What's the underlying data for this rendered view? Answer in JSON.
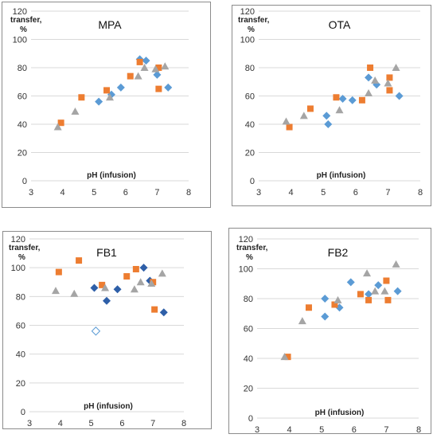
{
  "figure": {
    "panels": [
      "MPA",
      "OTA",
      "FB1",
      "FB2"
    ]
  },
  "chart_data": [
    {
      "type": "scatter",
      "title": "MPA",
      "xlabel": "pH (infusion)",
      "ylabel": "transfer, %",
      "xlim": [
        3,
        8
      ],
      "ylim": [
        0,
        120
      ],
      "x_ticks": [
        3,
        4,
        5,
        6,
        7,
        8
      ],
      "y_ticks": [
        0,
        20,
        40,
        60,
        80,
        100,
        120
      ],
      "grid": "horizontal",
      "series": [
        {
          "marker": "diamond",
          "color": "#5b9bd5",
          "points": [
            [
              5.15,
              56
            ],
            [
              5.55,
              61
            ],
            [
              5.85,
              66
            ],
            [
              6.45,
              86
            ],
            [
              6.65,
              85
            ],
            [
              7.0,
              75
            ],
            [
              7.35,
              66
            ]
          ]
        },
        {
          "marker": "square",
          "color": "#ed7d31",
          "points": [
            [
              3.95,
              41
            ],
            [
              4.6,
              59
            ],
            [
              5.4,
              64
            ],
            [
              6.15,
              74
            ],
            [
              6.45,
              84
            ],
            [
              7.05,
              80
            ],
            [
              7.05,
              65
            ]
          ]
        },
        {
          "marker": "triangle",
          "color": "#a5a5a5",
          "points": [
            [
              3.85,
              38
            ],
            [
              4.4,
              49
            ],
            [
              5.5,
              59
            ],
            [
              6.4,
              74
            ],
            [
              6.6,
              80
            ],
            [
              6.95,
              79
            ],
            [
              7.25,
              81
            ]
          ]
        }
      ]
    },
    {
      "type": "scatter",
      "title": "OTA",
      "xlabel": "pH (infusion)",
      "ylabel": "transfer, %",
      "xlim": [
        3,
        8
      ],
      "ylim": [
        0,
        120
      ],
      "x_ticks": [
        3,
        4,
        5,
        6,
        7,
        8
      ],
      "y_ticks": [
        0,
        20,
        40,
        60,
        80,
        100,
        120
      ],
      "grid": "horizontal",
      "series": [
        {
          "marker": "diamond",
          "color": "#5b9bd5",
          "points": [
            [
              5.1,
              46
            ],
            [
              5.15,
              40
            ],
            [
              5.6,
              58
            ],
            [
              5.9,
              57
            ],
            [
              6.4,
              73
            ],
            [
              6.65,
              68
            ],
            [
              7.35,
              60
            ]
          ]
        },
        {
          "marker": "square",
          "color": "#ed7d31",
          "points": [
            [
              3.95,
              38
            ],
            [
              4.6,
              51
            ],
            [
              5.4,
              59
            ],
            [
              6.2,
              57
            ],
            [
              6.45,
              80
            ],
            [
              7.05,
              73
            ],
            [
              7.05,
              64
            ]
          ]
        },
        {
          "marker": "triangle",
          "color": "#a5a5a5",
          "points": [
            [
              3.85,
              42
            ],
            [
              4.4,
              46
            ],
            [
              5.5,
              50
            ],
            [
              6.4,
              62
            ],
            [
              6.6,
              71
            ],
            [
              7.0,
              69
            ],
            [
              7.25,
              80
            ]
          ]
        }
      ]
    },
    {
      "type": "scatter",
      "title": "FB1",
      "xlabel": "pH (infusion)",
      "ylabel": "transfer, %",
      "xlim": [
        3,
        8
      ],
      "ylim": [
        0,
        120
      ],
      "x_ticks": [
        3,
        4,
        5,
        6,
        7,
        8
      ],
      "y_ticks": [
        0,
        20,
        40,
        60,
        80,
        100,
        120
      ],
      "grid": "horizontal",
      "series": [
        {
          "marker": "diamond",
          "color": "#2e5fa8",
          "points": [
            [
              5.1,
              86
            ],
            [
              5.5,
              77
            ],
            [
              5.85,
              85
            ],
            [
              6.7,
              100
            ],
            [
              6.9,
              91
            ],
            [
              7.35,
              69
            ]
          ]
        },
        {
          "marker": "diamond-open",
          "color": "#5b9bd5",
          "points": [
            [
              5.15,
              56
            ]
          ]
        },
        {
          "marker": "square",
          "color": "#ed7d31",
          "points": [
            [
              3.95,
              97
            ],
            [
              4.6,
              105
            ],
            [
              5.35,
              88
            ],
            [
              6.15,
              94
            ],
            [
              6.45,
              99
            ],
            [
              7.0,
              90
            ],
            [
              7.05,
              71
            ]
          ]
        },
        {
          "marker": "triangle",
          "color": "#a5a5a5",
          "points": [
            [
              3.85,
              84
            ],
            [
              4.45,
              82
            ],
            [
              5.45,
              86
            ],
            [
              6.4,
              85
            ],
            [
              6.6,
              90
            ],
            [
              6.95,
              89
            ],
            [
              7.3,
              96
            ]
          ]
        }
      ]
    },
    {
      "type": "scatter",
      "title": "FB2",
      "xlabel": "pH (infusion)",
      "ylabel": "transfer, %",
      "xlim": [
        3,
        8
      ],
      "ylim": [
        0,
        120
      ],
      "x_ticks": [
        3,
        4,
        5,
        6,
        7,
        8
      ],
      "y_ticks": [
        0,
        20,
        40,
        60,
        80,
        100,
        120
      ],
      "grid": "horizontal",
      "series": [
        {
          "marker": "diamond",
          "color": "#5b9bd5",
          "points": [
            [
              5.1,
              80
            ],
            [
              5.1,
              68
            ],
            [
              5.55,
              74
            ],
            [
              5.9,
              91
            ],
            [
              6.45,
              83
            ],
            [
              6.75,
              89
            ],
            [
              7.35,
              85
            ]
          ]
        },
        {
          "marker": "square",
          "color": "#ed7d31",
          "points": [
            [
              3.95,
              41
            ],
            [
              4.6,
              74
            ],
            [
              5.4,
              76
            ],
            [
              6.2,
              83
            ],
            [
              6.45,
              79
            ],
            [
              7.0,
              92
            ],
            [
              7.05,
              79
            ]
          ]
        },
        {
          "marker": "triangle",
          "color": "#a5a5a5",
          "points": [
            [
              3.85,
              41
            ],
            [
              4.4,
              65
            ],
            [
              5.5,
              79
            ],
            [
              6.4,
              97
            ],
            [
              6.65,
              85
            ],
            [
              6.95,
              85
            ],
            [
              7.3,
              103
            ]
          ]
        }
      ]
    }
  ]
}
